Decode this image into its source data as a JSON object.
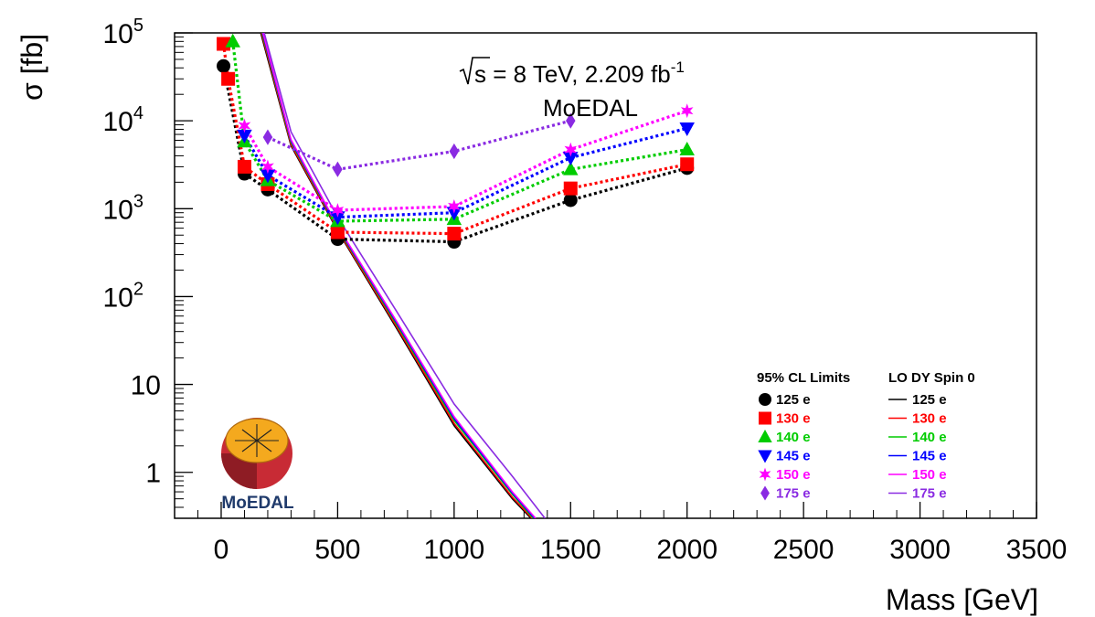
{
  "chart_data": {
    "type": "line",
    "title": "",
    "xlabel": "Mass [GeV]",
    "ylabel": "σ [fb]",
    "xlim": [
      -200,
      3500
    ],
    "ylim": [
      0.3,
      100000
    ],
    "yscale": "log",
    "grid": false,
    "x_ticks": [
      "0",
      "500",
      "1000",
      "1500",
      "2000",
      "2500",
      "3000",
      "3500"
    ],
    "x_tick_values": [
      0,
      500,
      1000,
      1500,
      2000,
      2500,
      3000,
      3500
    ],
    "y_ticks": [
      {
        "value": 1,
        "base": "1",
        "exp": ""
      },
      {
        "value": 10,
        "base": "10",
        "exp": ""
      },
      {
        "value": 100,
        "base": "10",
        "exp": "2"
      },
      {
        "value": 1000,
        "base": "10",
        "exp": "3"
      },
      {
        "value": 10000,
        "base": "10",
        "exp": "4"
      },
      {
        "value": 100000,
        "base": "10",
        "exp": "5"
      }
    ],
    "annotation": {
      "energy_prefix": "s",
      "energy_rest": " = 8 TeV, 2.209 fb",
      "lumi_exp": "-1",
      "experiment": "MoEDAL"
    },
    "legend": {
      "position": "bottom-right",
      "limits_title": "95% CL Limits",
      "theory_title": "LO DY Spin 0"
    },
    "limit_series": [
      {
        "name": "125 e",
        "color": "#000000",
        "marker": "circle",
        "x": [
          10,
          100,
          200,
          500,
          1000,
          1500,
          2000
        ],
        "y": [
          42000,
          2500,
          1650,
          450,
          420,
          1250,
          2900
        ]
      },
      {
        "name": "130 e",
        "color": "#ff0000",
        "marker": "square",
        "x": [
          10,
          30,
          100,
          200,
          500,
          1000,
          1500,
          2000
        ],
        "y": [
          75000,
          30000,
          3000,
          1900,
          540,
          520,
          1700,
          3200
        ]
      },
      {
        "name": "140 e",
        "color": "#00cc00",
        "marker": "triangle-up",
        "x": [
          50,
          100,
          200,
          500,
          1000,
          1500,
          2000
        ],
        "y": [
          80000,
          5800,
          2100,
          720,
          760,
          2800,
          4700
        ]
      },
      {
        "name": "145 e",
        "color": "#0000ff",
        "marker": "triangle-down",
        "x": [
          100,
          200,
          500,
          1000,
          1500,
          2000
        ],
        "y": [
          6800,
          2400,
          800,
          900,
          3800,
          8200
        ]
      },
      {
        "name": "150 e",
        "color": "#ff00ff",
        "marker": "star",
        "x": [
          100,
          200,
          500,
          1000,
          1500,
          2000
        ],
        "y": [
          8800,
          3000,
          960,
          1060,
          4700,
          13000
        ]
      },
      {
        "name": "175 e",
        "color": "#8a2be2",
        "marker": "diamond",
        "x": [
          200,
          500,
          1000,
          1500
        ],
        "y": [
          6500,
          2800,
          4500,
          10000
        ]
      }
    ],
    "theory_series": [
      {
        "name": "125 e",
        "color": "#000000",
        "x": [
          170,
          300,
          500,
          750,
          1000,
          1250,
          1330
        ],
        "y": [
          100000,
          5200,
          560,
          45,
          3.4,
          0.5,
          0.3
        ]
      },
      {
        "name": "130 e",
        "color": "#ff0000",
        "x": [
          173,
          300,
          500,
          750,
          1000,
          1250,
          1335
        ],
        "y": [
          100000,
          5400,
          575,
          47,
          3.6,
          0.52,
          0.3
        ]
      },
      {
        "name": "140 e",
        "color": "#00cc00",
        "x": [
          176,
          300,
          500,
          750,
          1000,
          1250,
          1340
        ],
        "y": [
          100000,
          5700,
          600,
          50,
          3.9,
          0.56,
          0.3
        ]
      },
      {
        "name": "145 e",
        "color": "#0000ff",
        "x": [
          178,
          300,
          500,
          750,
          1000,
          1250,
          1345
        ],
        "y": [
          100000,
          5900,
          615,
          52,
          4.1,
          0.58,
          0.3
        ]
      },
      {
        "name": "150 e",
        "color": "#ff00ff",
        "x": [
          180,
          300,
          500,
          750,
          1000,
          1250,
          1350
        ],
        "y": [
          100000,
          6100,
          630,
          54,
          4.3,
          0.6,
          0.3
        ]
      },
      {
        "name": "175 e",
        "color": "#8a2be2",
        "x": [
          185,
          300,
          500,
          750,
          1000,
          1250,
          1390
        ],
        "y": [
          100000,
          7500,
          800,
          70,
          6,
          0.9,
          0.3
        ]
      }
    ]
  },
  "logo": {
    "text": "MoEDAL"
  }
}
